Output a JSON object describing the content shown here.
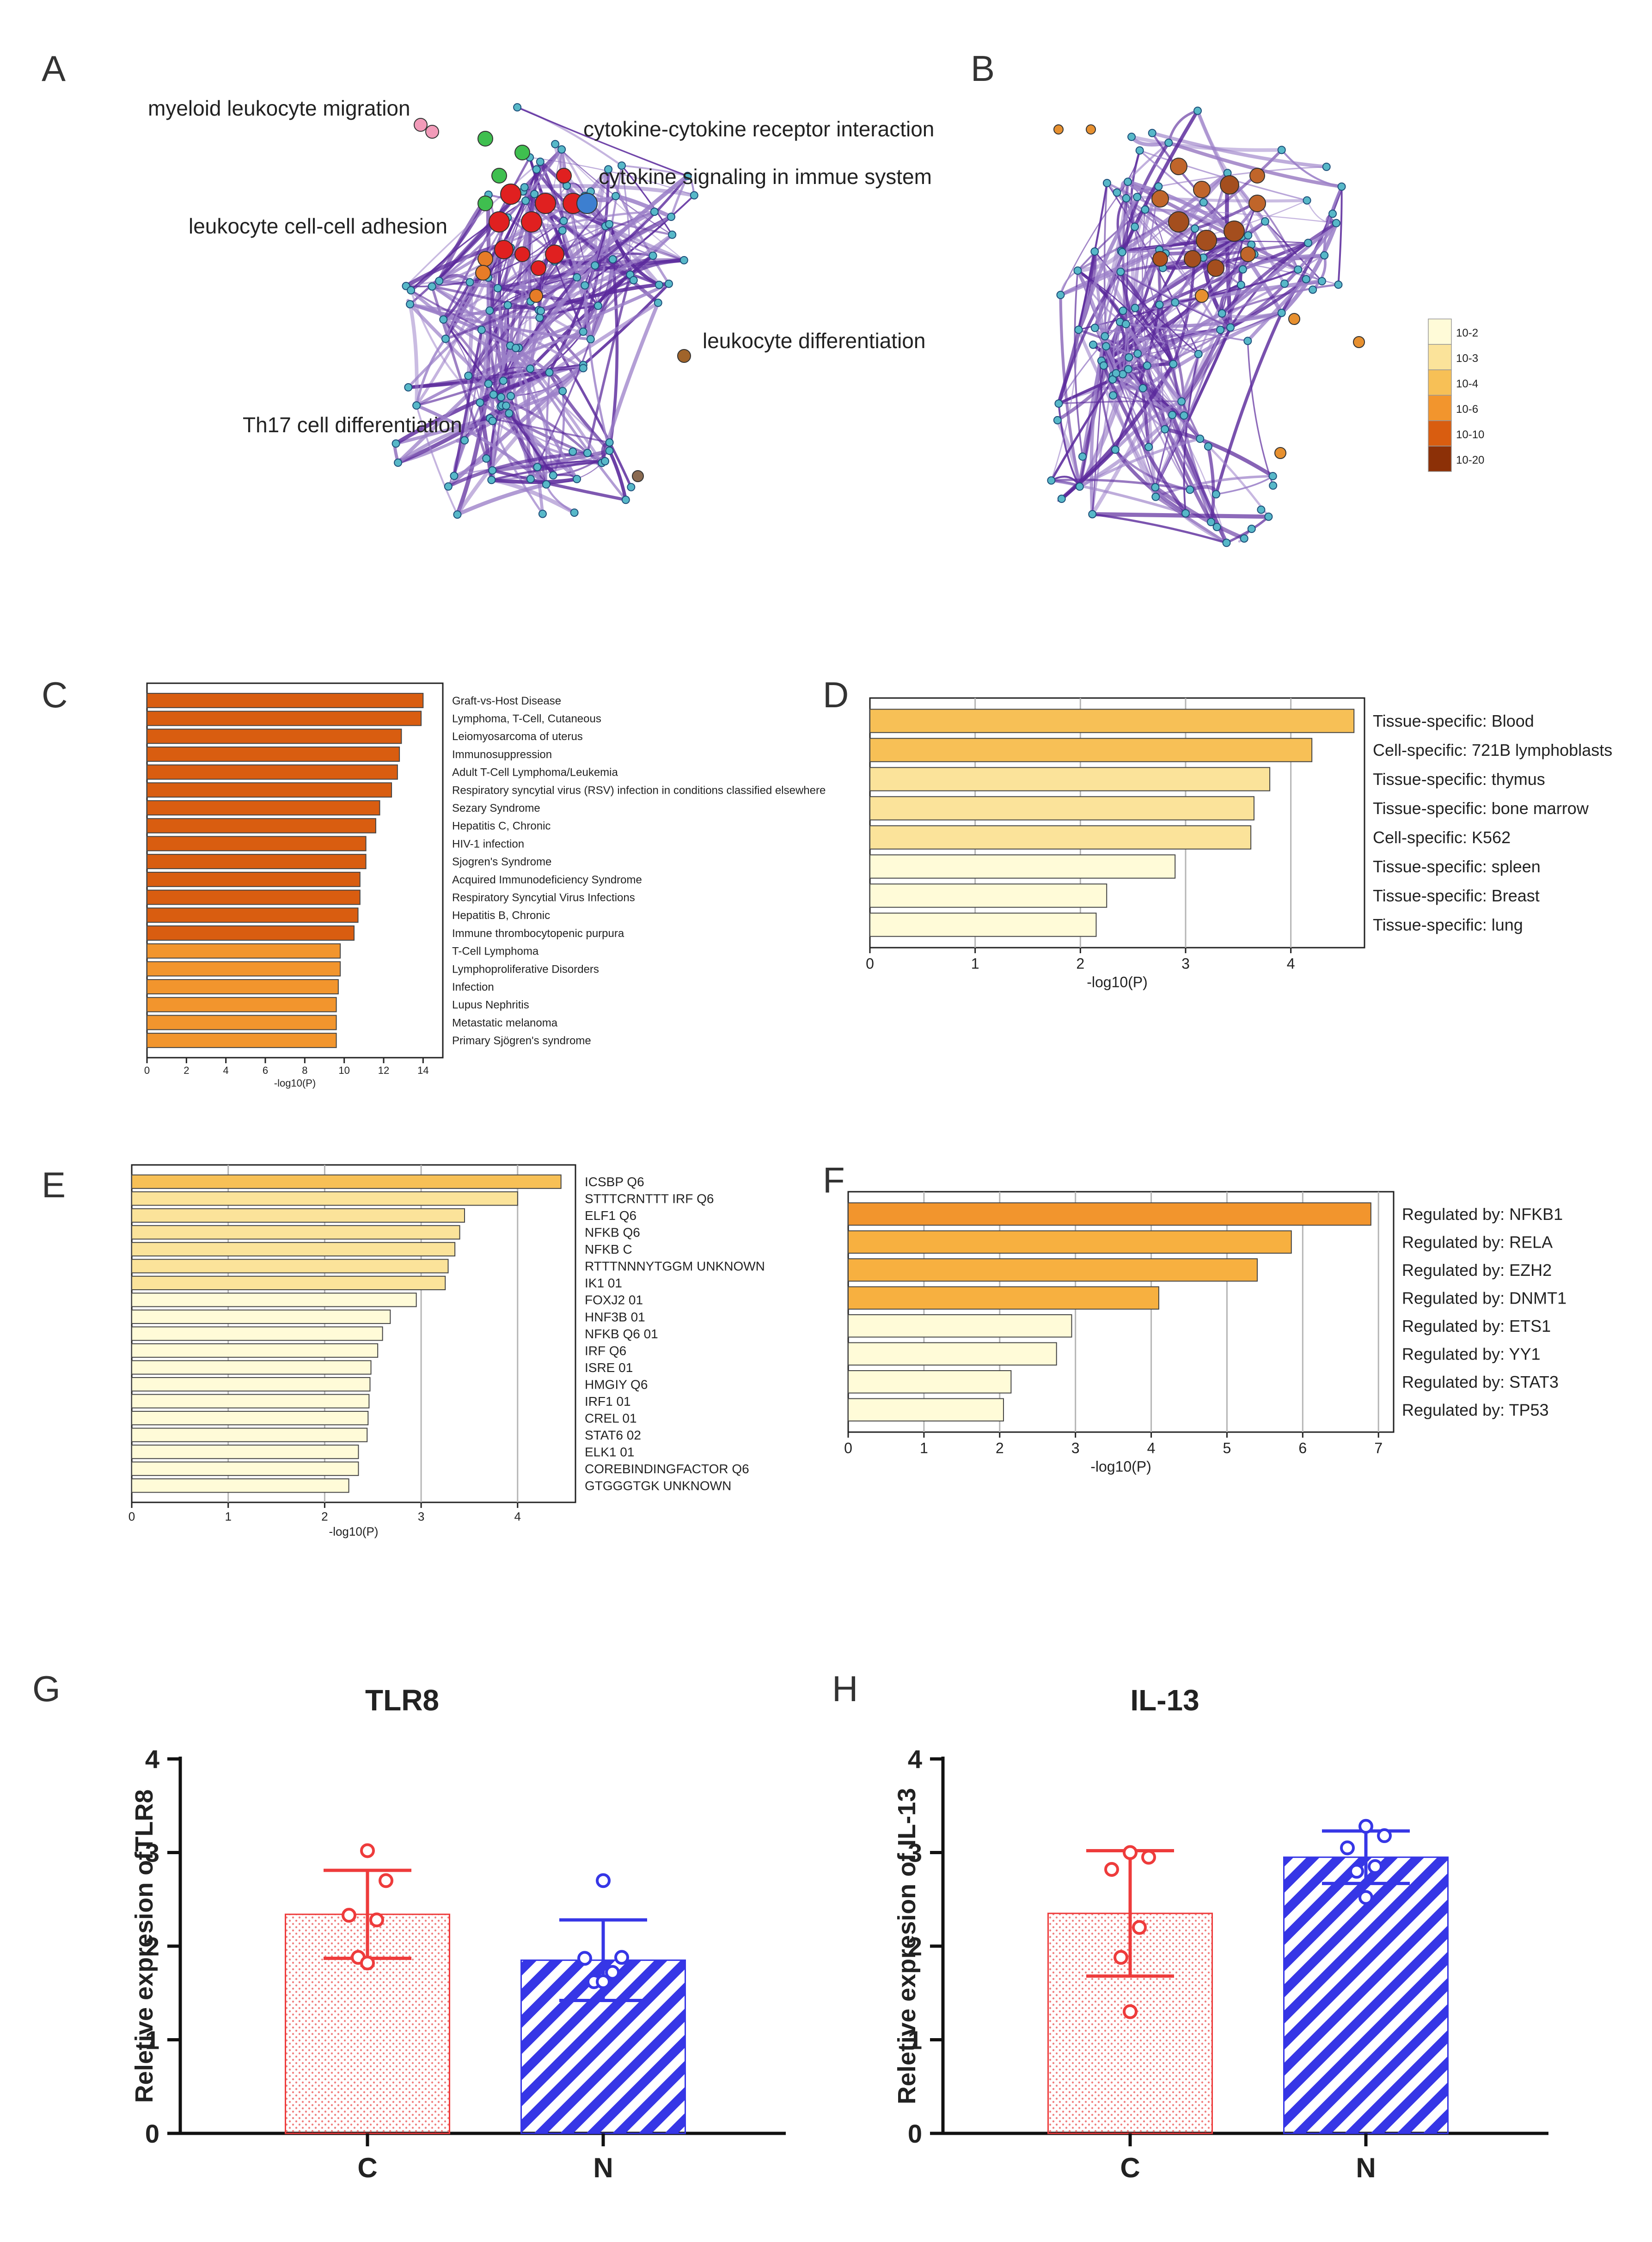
{
  "panels": {
    "A": {
      "letter": "A",
      "labels": [
        "myeloid leukocyte migration",
        "cytokine-cytokine receptor interaction",
        "cytokine signaling in immue system",
        "leukocyte cell-cell adhesion",
        "leukocyte differentiation",
        "Th17 cell differentiation"
      ]
    },
    "B": {
      "letter": "B",
      "legend": {
        "labels": [
          "10-2",
          "10-3",
          "10-4",
          "10-6",
          "10-10",
          "10-20"
        ],
        "colors": [
          "#fffbd8",
          "#fbe39a",
          "#f7c056",
          "#f2952d",
          "#d95d10",
          "#8c3007"
        ]
      }
    }
  },
  "chart_data": [
    {
      "panel": "C",
      "type": "bar",
      "orientation": "horizontal",
      "xlabel": "-log10(P)",
      "xlim": [
        0,
        15
      ],
      "xticks": [
        0,
        2,
        4,
        6,
        8,
        10,
        12,
        14
      ],
      "categories": [
        "Graft-vs-Host Disease",
        "Lymphoma, T-Cell, Cutaneous",
        "Leiomyosarcoma of uterus",
        "Immunosuppression",
        "Adult T-Cell Lymphoma/Leukemia",
        "Respiratory syncytial virus (RSV) infection in conditions classified elsewhere",
        "Sezary Syndrome",
        "Hepatitis C, Chronic",
        "HIV-1 infection",
        "Sjogren's Syndrome",
        "Acquired Immunodeficiency Syndrome",
        "Respiratory Syncytial Virus Infections",
        "Hepatitis B, Chronic",
        "Immune thrombocytopenic purpura",
        "T-Cell Lymphoma",
        "Lymphoproliferative Disorders",
        "Infection",
        "Lupus Nephritis",
        "Metastatic melanoma",
        "Primary Sjögren's syndrome"
      ],
      "values": [
        14.0,
        13.9,
        12.9,
        12.8,
        12.7,
        12.4,
        11.8,
        11.6,
        11.1,
        11.1,
        10.8,
        10.8,
        10.7,
        10.5,
        9.8,
        9.8,
        9.7,
        9.6,
        9.6,
        9.6
      ],
      "colors": [
        "#d95d10",
        "#d95d10",
        "#d95d10",
        "#d95d10",
        "#d95d10",
        "#d95d10",
        "#d95d10",
        "#d95d10",
        "#d95d10",
        "#d95d10",
        "#d95d10",
        "#d95d10",
        "#d95d10",
        "#d95d10",
        "#f2952d",
        "#f2952d",
        "#f2952d",
        "#f2952d",
        "#f2952d",
        "#f2952d"
      ]
    },
    {
      "panel": "D",
      "type": "bar",
      "orientation": "horizontal",
      "xlabel": "-log10(P)",
      "xlim": [
        0,
        4.7
      ],
      "xticks": [
        0,
        1,
        2,
        3,
        4
      ],
      "grid": true,
      "categories": [
        "Tissue-specific: Blood",
        "Cell-specific: 721B lymphoblasts",
        "Tissue-specific: thymus",
        "Tissue-specific: bone marrow",
        "Cell-specific: K562",
        "Tissue-specific: spleen",
        "Tissue-specific: Breast",
        "Tissue-specific: lung"
      ],
      "values": [
        4.6,
        4.2,
        3.8,
        3.65,
        3.62,
        2.9,
        2.25,
        2.15
      ],
      "colors": [
        "#f7c056",
        "#f7c056",
        "#fbe39a",
        "#fbe39a",
        "#fbe39a",
        "#fffbd8",
        "#fffbd8",
        "#fffbd8"
      ]
    },
    {
      "panel": "E",
      "type": "bar",
      "orientation": "horizontal",
      "xlabel": "-log10(P)",
      "xlim": [
        0,
        4.6
      ],
      "xticks": [
        0,
        1,
        2,
        3,
        4
      ],
      "grid": true,
      "categories": [
        "ICSBP Q6",
        "STTTCRNTTT IRF Q6",
        "ELF1 Q6",
        "NFKB Q6",
        "NFKB C",
        "RTTTNNNYTGGM UNKNOWN",
        "IK1 01",
        "FOXJ2 01",
        "HNF3B 01",
        "NFKB Q6 01",
        "IRF Q6",
        "ISRE 01",
        "HMGIY Q6",
        "IRF1 01",
        "CREL 01",
        "STAT6 02",
        "ELK1 01",
        "COREBINDINGFACTOR Q6",
        "GTGGGTGK UNKNOWN"
      ],
      "values": [
        4.45,
        4.0,
        3.45,
        3.4,
        3.35,
        3.28,
        3.25,
        2.95,
        2.68,
        2.6,
        2.55,
        2.48,
        2.47,
        2.46,
        2.45,
        2.44,
        2.35,
        2.35,
        2.25
      ],
      "colors": [
        "#f7c056",
        "#fbe39a",
        "#fbe39a",
        "#fbe39a",
        "#fbe39a",
        "#fbe39a",
        "#fbe39a",
        "#fffbd8",
        "#fffbd8",
        "#fffbd8",
        "#fffbd8",
        "#fffbd8",
        "#fffbd8",
        "#fffbd8",
        "#fffbd8",
        "#fffbd8",
        "#fffbd8",
        "#fffbd8",
        "#fffbd8"
      ]
    },
    {
      "panel": "F",
      "type": "bar",
      "orientation": "horizontal",
      "xlabel": "-log10(P)",
      "xlim": [
        0,
        7.2
      ],
      "xticks": [
        0,
        1,
        2,
        3,
        4,
        5,
        6,
        7
      ],
      "grid": true,
      "categories": [
        "Regulated by: NFKB1",
        "Regulated by: RELA",
        "Regulated by: EZH2",
        "Regulated by: DNMT1",
        "Regulated by: ETS1",
        "Regulated by: YY1",
        "Regulated by: STAT3",
        "Regulated by: TP53"
      ],
      "values": [
        6.9,
        5.85,
        5.4,
        4.1,
        2.95,
        2.75,
        2.15,
        2.05
      ],
      "colors": [
        "#f2952d",
        "#f7b040",
        "#f7b040",
        "#f7b040",
        "#fffbd8",
        "#fffbd8",
        "#fffbd8",
        "#fffbd8"
      ]
    },
    {
      "panel": "G",
      "type": "bar",
      "title": "TLR8",
      "ylabel": "Reletive expresion ofTLR8",
      "ylim": [
        0,
        4
      ],
      "yticks": [
        0,
        1,
        2,
        3,
        4
      ],
      "categories": [
        "C",
        "N"
      ],
      "values": [
        2.34,
        1.85
      ],
      "error": [
        0.47,
        0.43
      ],
      "points": [
        [
          3.02,
          2.7,
          2.33,
          2.28,
          1.88,
          1.82
        ],
        [
          2.7,
          1.88,
          1.87,
          1.72,
          1.62,
          1.62
        ]
      ],
      "colors": [
        "#ee3b3b",
        "#3636e6"
      ]
    },
    {
      "panel": "H",
      "type": "bar",
      "title": "IL-13",
      "ylabel": "Reletive expresion of IL-13",
      "ylim": [
        0,
        4
      ],
      "yticks": [
        0,
        1,
        2,
        3,
        4
      ],
      "categories": [
        "C",
        "N"
      ],
      "values": [
        2.35,
        2.95
      ],
      "error": [
        0.67,
        0.28
      ],
      "points": [
        [
          3.0,
          2.95,
          2.82,
          2.2,
          1.88,
          1.3
        ],
        [
          3.28,
          3.18,
          3.05,
          2.85,
          2.8,
          2.52
        ]
      ],
      "colors": [
        "#ee3b3b",
        "#3636e6"
      ]
    }
  ]
}
